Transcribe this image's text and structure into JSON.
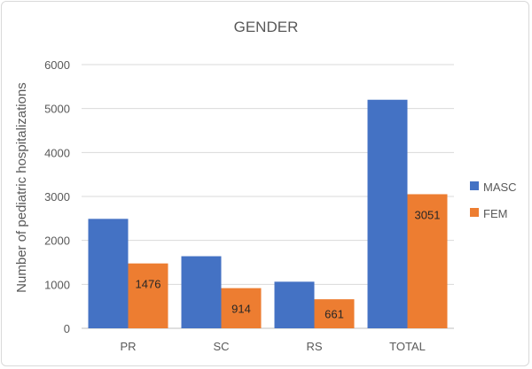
{
  "chart_data": {
    "type": "bar",
    "title": "GENDER",
    "ylabel": "Number of pediatric hospitalizations",
    "xlabel": "",
    "categories": [
      "PR",
      "SC",
      "RS",
      "TOTAL"
    ],
    "ylim": [
      0,
      6000
    ],
    "yticks": [
      0,
      1000,
      2000,
      3000,
      4000,
      5000,
      6000
    ],
    "grid": true,
    "legend_position": "right",
    "series": [
      {
        "name": "MASC",
        "color": "#4472c4",
        "values": [
          2490,
          1640,
          1060,
          5200
        ],
        "labels": [
          "",
          "",
          "",
          ""
        ]
      },
      {
        "name": "FEM",
        "color": "#ed7d31",
        "values": [
          1476,
          914,
          661,
          3051
        ],
        "labels": [
          "1476",
          "914",
          "661",
          "3051"
        ]
      }
    ]
  }
}
